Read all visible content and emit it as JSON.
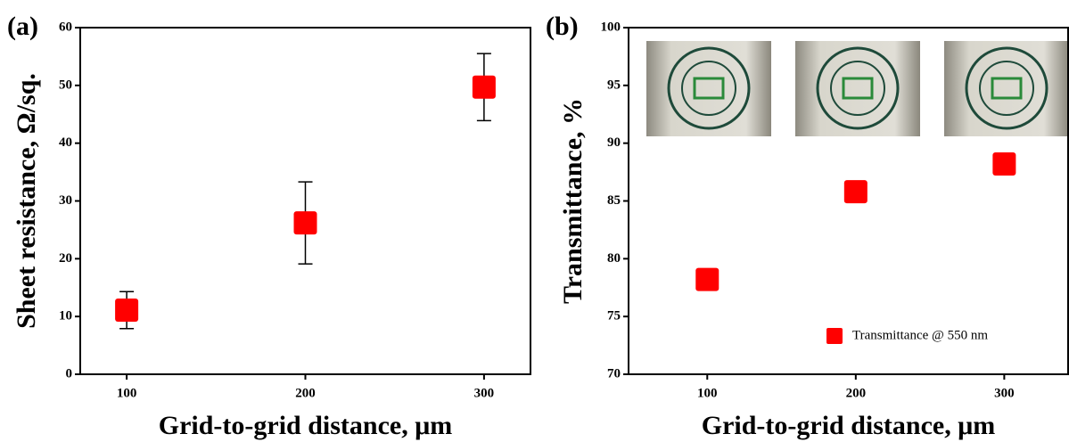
{
  "chart_data": [
    {
      "type": "scatter",
      "panel_label": "(a)",
      "x_label": "Grid-to-grid distance, μm",
      "y_label": "Sheet resistance, Ω/sq.",
      "x": [
        100,
        200,
        300
      ],
      "series": [
        {
          "color": "#ff0000",
          "values": [
            11.1,
            26.2,
            49.7
          ],
          "errors": [
            3.2,
            7.1,
            5.8
          ]
        }
      ],
      "xlim": [
        74,
        326
      ],
      "xticks": [
        100,
        200,
        300
      ],
      "ylim": [
        0,
        60
      ],
      "yticks": [
        0,
        10,
        20,
        30,
        40,
        50,
        60
      ]
    },
    {
      "type": "scatter",
      "panel_label": "(b)",
      "x_label": "Grid-to-grid distance, μm",
      "y_label": "Transmittance, %",
      "x": [
        100,
        200,
        300
      ],
      "series": [
        {
          "name": "Transmittance @ 550 nm",
          "color": "#ff0000",
          "values": [
            78.2,
            85.8,
            88.2
          ]
        }
      ],
      "xlim": [
        47,
        343
      ],
      "xticks": [
        100,
        200,
        300
      ],
      "ylim": [
        70,
        100
      ],
      "yticks": [
        70,
        75,
        80,
        85,
        90,
        95,
        100
      ],
      "legend": "lower right"
    }
  ]
}
